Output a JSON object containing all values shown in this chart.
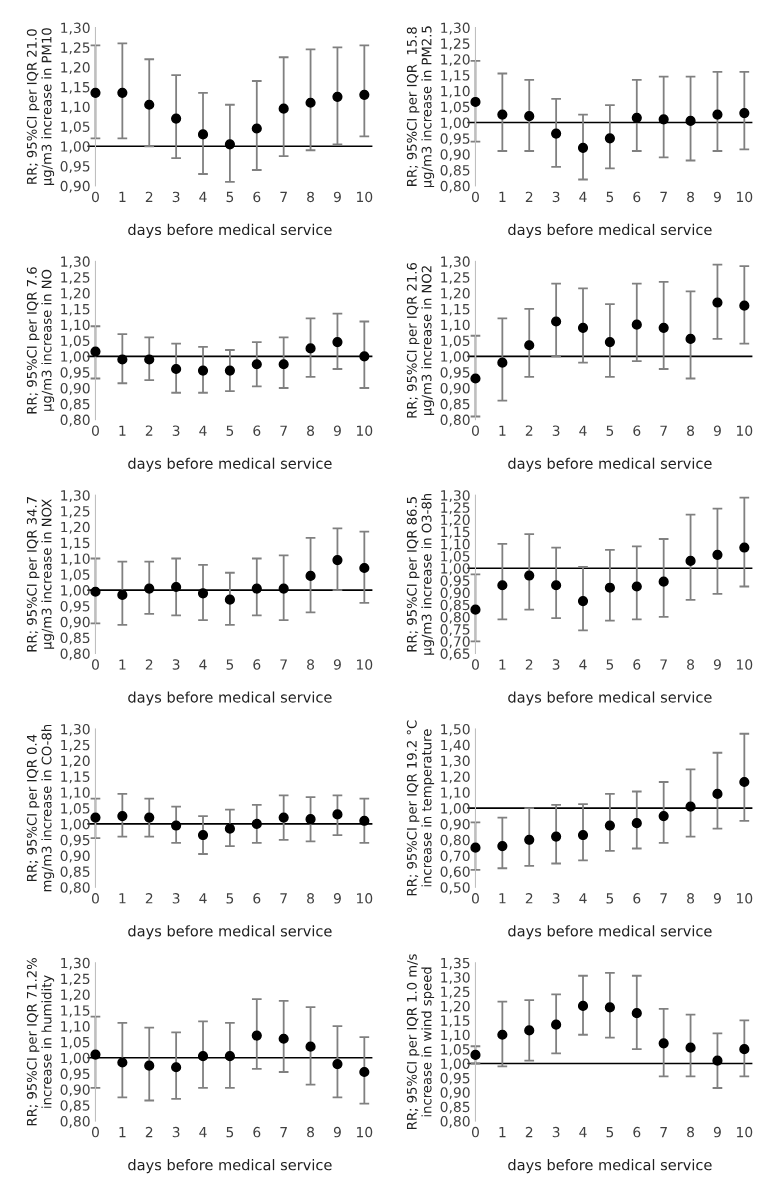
{
  "chart_data": [
    {
      "type": "scatter",
      "ylabel": "RR; 95%CI per IQR 21.0 µg/m3 increase in PM10",
      "xlabel": "days before medical service",
      "categories": [
        "0",
        "1",
        "2",
        "3",
        "4",
        "5",
        "6",
        "7",
        "8",
        "9",
        "10"
      ],
      "color": "#000000",
      "marker": "circle",
      "grid": false,
      "ref_lines": [
        {
          "axis": "y",
          "value": 1.0,
          "color": "#000000"
        }
      ],
      "values": [
        1.135,
        1.135,
        1.105,
        1.07,
        1.03,
        1.005,
        1.045,
        1.095,
        1.11,
        1.125,
        1.13
      ],
      "errors": [
        [
          1.02,
          1.255
        ],
        [
          1.02,
          1.26
        ],
        [
          1.0,
          1.22
        ],
        [
          0.97,
          1.18
        ],
        [
          0.93,
          1.135
        ],
        [
          0.91,
          1.105
        ],
        [
          0.94,
          1.165
        ],
        [
          0.975,
          1.225
        ],
        [
          0.99,
          1.245
        ],
        [
          1.005,
          1.25
        ],
        [
          1.025,
          1.255
        ]
      ],
      "ylim": [
        0.9,
        1.3
      ],
      "yticks": [
        {
          "value": 0.9,
          "label": "0,90"
        },
        {
          "value": 0.95,
          "label": "0,95"
        },
        {
          "value": 1.0,
          "label": "1,00"
        },
        {
          "value": 1.05,
          "label": "1,05"
        },
        {
          "value": 1.1,
          "label": "1,10"
        },
        {
          "value": 1.15,
          "label": "1,15"
        },
        {
          "value": 1.2,
          "label": "1,20"
        },
        {
          "value": 1.25,
          "label": "1,25"
        },
        {
          "value": 1.3,
          "label": "1,30"
        }
      ]
    },
    {
      "type": "scatter",
      "ylabel": "RR; 95%CI per IQR  15.8 µg/m3 increase in PM2.5",
      "xlabel": "days before medical service",
      "categories": [
        "0",
        "1",
        "2",
        "3",
        "4",
        "5",
        "6",
        "7",
        "8",
        "9",
        "10"
      ],
      "color": "#000000",
      "marker": "circle",
      "grid": false,
      "ref_lines": [
        {
          "axis": "y",
          "value": 1.0,
          "color": "#000000"
        }
      ],
      "values": [
        1.065,
        1.025,
        1.02,
        0.965,
        0.92,
        0.95,
        1.015,
        1.01,
        1.005,
        1.025,
        1.03
      ],
      "errors": [
        [
          0.94,
          1.195
        ],
        [
          0.91,
          1.155
        ],
        [
          0.91,
          1.135
        ],
        [
          0.86,
          1.075
        ],
        [
          0.82,
          1.025
        ],
        [
          0.855,
          1.055
        ],
        [
          0.91,
          1.135
        ],
        [
          0.89,
          1.145
        ],
        [
          0.88,
          1.145
        ],
        [
          0.91,
          1.16
        ],
        [
          0.915,
          1.16
        ]
      ],
      "ylim": [
        0.8,
        1.3
      ],
      "yticks": [
        {
          "value": 0.8,
          "label": "0,80"
        },
        {
          "value": 0.85,
          "label": "0,85"
        },
        {
          "value": 0.9,
          "label": "0,90"
        },
        {
          "value": 0.95,
          "label": "0,95"
        },
        {
          "value": 1.0,
          "label": "1,00"
        },
        {
          "value": 1.05,
          "label": "1,05"
        },
        {
          "value": 1.1,
          "label": "1,10"
        },
        {
          "value": 1.15,
          "label": "1,15"
        },
        {
          "value": 1.2,
          "label": "1,20"
        },
        {
          "value": 1.25,
          "label": "1,25"
        },
        {
          "value": 1.3,
          "label": "1,30"
        }
      ]
    },
    {
      "type": "scatter",
      "ylabel": "RR; 95%CI per IQR 7.6 µg/m3 increase in NO",
      "xlabel": "days before medical service",
      "categories": [
        "0",
        "1",
        "2",
        "3",
        "4",
        "5",
        "6",
        "7",
        "8",
        "9",
        "10"
      ],
      "color": "#000000",
      "marker": "circle",
      "grid": false,
      "ref_lines": [
        {
          "axis": "y",
          "value": 1.0,
          "color": "#000000"
        }
      ],
      "values": [
        1.015,
        0.99,
        0.99,
        0.96,
        0.955,
        0.955,
        0.975,
        0.975,
        1.025,
        1.045,
        1.0
      ],
      "errors": [
        [
          0.93,
          1.095
        ],
        [
          0.915,
          1.07
        ],
        [
          0.925,
          1.06
        ],
        [
          0.885,
          1.04
        ],
        [
          0.885,
          1.03
        ],
        [
          0.89,
          1.02
        ],
        [
          0.905,
          1.045
        ],
        [
          0.9,
          1.06
        ],
        [
          0.935,
          1.12
        ],
        [
          0.96,
          1.135
        ],
        [
          0.9,
          1.11
        ]
      ],
      "ylim": [
        0.8,
        1.3
      ],
      "yticks": [
        {
          "value": 0.8,
          "label": "0,80"
        },
        {
          "value": 0.85,
          "label": "0,85"
        },
        {
          "value": 0.9,
          "label": "0,90"
        },
        {
          "value": 0.95,
          "label": "0,95"
        },
        {
          "value": 1.0,
          "label": "1,00"
        },
        {
          "value": 1.05,
          "label": "1,05"
        },
        {
          "value": 1.1,
          "label": "1,10"
        },
        {
          "value": 1.15,
          "label": "1,15"
        },
        {
          "value": 1.2,
          "label": "1,20"
        },
        {
          "value": 1.25,
          "label": "1,25"
        },
        {
          "value": 1.3,
          "label": "1,30"
        }
      ]
    },
    {
      "type": "scatter",
      "ylabel": "RR; 95%CI per IQR 21.6 µg/m3 increase in NO2",
      "xlabel": "days before medical service",
      "categories": [
        "0",
        "1",
        "2",
        "3",
        "4",
        "5",
        "6",
        "7",
        "8",
        "9",
        "10"
      ],
      "color": "#000000",
      "marker": "circle",
      "grid": false,
      "ref_lines": [
        {
          "axis": "y",
          "value": 1.0,
          "color": "#000000"
        }
      ],
      "values": [
        0.93,
        0.98,
        1.035,
        1.11,
        1.09,
        1.045,
        1.1,
        1.09,
        1.055,
        1.17,
        1.16
      ],
      "errors": [
        [
          0.81,
          1.065
        ],
        [
          0.86,
          1.12
        ],
        [
          0.935,
          1.15
        ],
        [
          1.0,
          1.23
        ],
        [
          0.98,
          1.215
        ],
        [
          0.935,
          1.165
        ],
        [
          0.985,
          1.23
        ],
        [
          0.96,
          1.235
        ],
        [
          0.93,
          1.205
        ],
        [
          1.055,
          1.29
        ],
        [
          1.04,
          1.285
        ]
      ],
      "ylim": [
        0.8,
        1.3
      ],
      "yticks": [
        {
          "value": 0.8,
          "label": "0,80"
        },
        {
          "value": 0.85,
          "label": "0,85"
        },
        {
          "value": 0.9,
          "label": "0,90"
        },
        {
          "value": 0.95,
          "label": "0,95"
        },
        {
          "value": 1.0,
          "label": "1,00"
        },
        {
          "value": 1.05,
          "label": "1,05"
        },
        {
          "value": 1.1,
          "label": "1,10"
        },
        {
          "value": 1.15,
          "label": "1,15"
        },
        {
          "value": 1.2,
          "label": "1,20"
        },
        {
          "value": 1.25,
          "label": "1,25"
        },
        {
          "value": 1.3,
          "label": "1,30"
        }
      ]
    },
    {
      "type": "scatter",
      "ylabel": "RR; 95%CI per IQR 34.7 µg/m3 increase in NOX",
      "xlabel": "days before medical service",
      "categories": [
        "0",
        "1",
        "2",
        "3",
        "4",
        "5",
        "6",
        "7",
        "8",
        "9",
        "10"
      ],
      "color": "#000000",
      "marker": "circle",
      "grid": false,
      "ref_lines": [
        {
          "axis": "y",
          "value": 1.0,
          "color": "#000000"
        }
      ],
      "values": [
        0.995,
        0.985,
        1.005,
        1.01,
        0.99,
        0.97,
        1.005,
        1.005,
        1.045,
        1.095,
        1.07
      ],
      "errors": [
        [
          0.895,
          1.1
        ],
        [
          0.89,
          1.09
        ],
        [
          0.925,
          1.09
        ],
        [
          0.92,
          1.1
        ],
        [
          0.905,
          1.08
        ],
        [
          0.89,
          1.055
        ],
        [
          0.92,
          1.1
        ],
        [
          0.905,
          1.11
        ],
        [
          0.93,
          1.165
        ],
        [
          1.0,
          1.195
        ],
        [
          0.96,
          1.185
        ]
      ],
      "ylim": [
        0.8,
        1.3
      ],
      "yticks": [
        {
          "value": 0.8,
          "label": "0,80"
        },
        {
          "value": 0.85,
          "label": "0,85"
        },
        {
          "value": 0.9,
          "label": "0,90"
        },
        {
          "value": 0.95,
          "label": "0,95"
        },
        {
          "value": 1.0,
          "label": "1,00"
        },
        {
          "value": 1.05,
          "label": "1,05"
        },
        {
          "value": 1.1,
          "label": "1,10"
        },
        {
          "value": 1.15,
          "label": "1,15"
        },
        {
          "value": 1.2,
          "label": "1,20"
        },
        {
          "value": 1.25,
          "label": "1,25"
        },
        {
          "value": 1.3,
          "label": "1,30"
        }
      ]
    },
    {
      "type": "scatter",
      "ylabel": "RR; 95%CI per IQR 86.5 µg/m3 increase in O3-8h",
      "xlabel": "days before medical service",
      "categories": [
        "0",
        "1",
        "2",
        "3",
        "4",
        "5",
        "6",
        "7",
        "8",
        "9",
        "10"
      ],
      "color": "#000000",
      "marker": "circle",
      "grid": false,
      "ref_lines": [
        {
          "axis": "y",
          "value": 1.0,
          "color": "#000000"
        }
      ],
      "values": [
        0.83,
        0.93,
        0.97,
        0.93,
        0.865,
        0.92,
        0.925,
        0.945,
        1.03,
        1.055,
        1.085
      ],
      "errors": [
        [
          0.7,
          0.975
        ],
        [
          0.79,
          1.1
        ],
        [
          0.83,
          1.14
        ],
        [
          0.795,
          1.085
        ],
        [
          0.745,
          1.005
        ],
        [
          0.785,
          1.075
        ],
        [
          0.79,
          1.09
        ],
        [
          0.8,
          1.12
        ],
        [
          0.87,
          1.22
        ],
        [
          0.895,
          1.245
        ],
        [
          0.925,
          1.29
        ]
      ],
      "ylim": [
        0.65,
        1.3
      ],
      "yticks": [
        {
          "value": 0.65,
          "label": "0,65"
        },
        {
          "value": 0.7,
          "label": "0,70"
        },
        {
          "value": 0.75,
          "label": "0,75"
        },
        {
          "value": 0.8,
          "label": "0,80"
        },
        {
          "value": 0.85,
          "label": "0,85"
        },
        {
          "value": 0.9,
          "label": "0,90"
        },
        {
          "value": 0.95,
          "label": "0,95"
        },
        {
          "value": 1.0,
          "label": "1,00"
        },
        {
          "value": 1.05,
          "label": "1,05"
        },
        {
          "value": 1.1,
          "label": "1,10"
        },
        {
          "value": 1.15,
          "label": "1,15"
        },
        {
          "value": 1.2,
          "label": "1,20"
        },
        {
          "value": 1.25,
          "label": "1,25"
        },
        {
          "value": 1.3,
          "label": "1,30"
        }
      ]
    },
    {
      "type": "scatter",
      "ylabel": "RR; 95%CI per IQR 0.4 mg/m3 increase in CO-8h",
      "xlabel": "days before medical service",
      "categories": [
        "0",
        "1",
        "2",
        "3",
        "4",
        "5",
        "6",
        "7",
        "8",
        "9",
        "10"
      ],
      "color": "#000000",
      "marker": "circle",
      "grid": false,
      "ref_lines": [
        {
          "axis": "y",
          "value": 1.0,
          "color": "#000000"
        }
      ],
      "values": [
        1.02,
        1.025,
        1.02,
        0.995,
        0.965,
        0.985,
        1.0,
        1.02,
        1.015,
        1.03,
        1.01
      ],
      "errors": [
        [
          0.955,
          1.08
        ],
        [
          0.96,
          1.095
        ],
        [
          0.96,
          1.08
        ],
        [
          0.94,
          1.055
        ],
        [
          0.905,
          1.025
        ],
        [
          0.93,
          1.045
        ],
        [
          0.94,
          1.06
        ],
        [
          0.95,
          1.09
        ],
        [
          0.945,
          1.085
        ],
        [
          0.965,
          1.09
        ],
        [
          0.94,
          1.08
        ]
      ],
      "ylim": [
        0.8,
        1.3
      ],
      "yticks": [
        {
          "value": 0.8,
          "label": "0,80"
        },
        {
          "value": 0.85,
          "label": "0,85"
        },
        {
          "value": 0.9,
          "label": "0,90"
        },
        {
          "value": 0.95,
          "label": "0,95"
        },
        {
          "value": 1.0,
          "label": "1,00"
        },
        {
          "value": 1.05,
          "label": "1,05"
        },
        {
          "value": 1.1,
          "label": "1,10"
        },
        {
          "value": 1.15,
          "label": "1,15"
        },
        {
          "value": 1.2,
          "label": "1,20"
        },
        {
          "value": 1.25,
          "label": "1,25"
        },
        {
          "value": 1.3,
          "label": "1,30"
        }
      ]
    },
    {
      "type": "scatter",
      "ylabel": "RR; 95%CI per IQR 19.2 °C increase in temperature",
      "xlabel": "days before medical service",
      "categories": [
        "0",
        "1",
        "2",
        "3",
        "4",
        "5",
        "6",
        "7",
        "8",
        "9",
        "10"
      ],
      "color": "#000000",
      "marker": "circle",
      "grid": false,
      "ref_lines": [
        {
          "axis": "y",
          "value": 1.0,
          "color": "#000000"
        }
      ],
      "values": [
        0.75,
        0.76,
        0.8,
        0.82,
        0.83,
        0.89,
        0.905,
        0.95,
        1.01,
        1.09,
        1.165
      ],
      "errors": [
        [
          0.61,
          0.91
        ],
        [
          0.62,
          0.94
        ],
        [
          0.635,
          1.0
        ],
        [
          0.65,
          1.02
        ],
        [
          0.67,
          1.025
        ],
        [
          0.73,
          1.09
        ],
        [
          0.745,
          1.105
        ],
        [
          0.78,
          1.165
        ],
        [
          0.82,
          1.245
        ],
        [
          0.87,
          1.35
        ],
        [
          0.92,
          1.47
        ]
      ],
      "ylim": [
        0.5,
        1.5
      ],
      "yticks": [
        {
          "value": 0.5,
          "label": "0,50"
        },
        {
          "value": 0.6,
          "label": "0,60"
        },
        {
          "value": 0.7,
          "label": "0,70"
        },
        {
          "value": 0.8,
          "label": "0,80"
        },
        {
          "value": 0.9,
          "label": "0,90"
        },
        {
          "value": 1.0,
          "label": "1,00"
        },
        {
          "value": 1.1,
          "label": "1,10"
        },
        {
          "value": 1.2,
          "label": "1,20"
        },
        {
          "value": 1.3,
          "label": "1,30"
        },
        {
          "value": 1.4,
          "label": "1,40"
        },
        {
          "value": 1.5,
          "label": "1,50"
        }
      ]
    },
    {
      "type": "scatter",
      "ylabel": "RR; 95%CI per IQR 71.2% increase in humidity",
      "xlabel": "days before medical service",
      "categories": [
        "0",
        "1",
        "2",
        "3",
        "4",
        "5",
        "6",
        "7",
        "8",
        "9",
        "10"
      ],
      "color": "#000000",
      "marker": "circle",
      "grid": false,
      "ref_lines": [
        {
          "axis": "y",
          "value": 1.0,
          "color": "#000000"
        }
      ],
      "values": [
        1.01,
        0.985,
        0.975,
        0.97,
        1.005,
        1.005,
        1.07,
        1.06,
        1.035,
        0.98,
        0.955
      ],
      "errors": [
        [
          0.905,
          1.13
        ],
        [
          0.875,
          1.11
        ],
        [
          0.865,
          1.095
        ],
        [
          0.87,
          1.08
        ],
        [
          0.905,
          1.115
        ],
        [
          0.905,
          1.11
        ],
        [
          0.965,
          1.185
        ],
        [
          0.955,
          1.18
        ],
        [
          0.915,
          1.16
        ],
        [
          0.875,
          1.1
        ],
        [
          0.855,
          1.065
        ]
      ],
      "ylim": [
        0.8,
        1.3
      ],
      "yticks": [
        {
          "value": 0.8,
          "label": "0,80"
        },
        {
          "value": 0.85,
          "label": "0,85"
        },
        {
          "value": 0.9,
          "label": "0,90"
        },
        {
          "value": 0.95,
          "label": "0,95"
        },
        {
          "value": 1.0,
          "label": "1,00"
        },
        {
          "value": 1.05,
          "label": "1,05"
        },
        {
          "value": 1.1,
          "label": "1,10"
        },
        {
          "value": 1.15,
          "label": "1,15"
        },
        {
          "value": 1.2,
          "label": "1,20"
        },
        {
          "value": 1.25,
          "label": "1,25"
        },
        {
          "value": 1.3,
          "label": "1,30"
        }
      ]
    },
    {
      "type": "scatter",
      "ylabel": "RR; 95%CI per IQR 1.0 m/s increase in wind speed",
      "xlabel": "days before medical service",
      "categories": [
        "0",
        "1",
        "2",
        "3",
        "4",
        "5",
        "6",
        "7",
        "8",
        "9",
        "10"
      ],
      "color": "#000000",
      "marker": "circle",
      "grid": false,
      "ref_lines": [
        {
          "axis": "y",
          "value": 1.0,
          "color": "#000000"
        }
      ],
      "values": [
        1.03,
        1.1,
        1.115,
        1.135,
        1.2,
        1.195,
        1.175,
        1.07,
        1.055,
        1.01,
        1.05
      ],
      "errors": [
        [
          1.0,
          1.06
        ],
        [
          0.99,
          1.215
        ],
        [
          1.01,
          1.22
        ],
        [
          1.035,
          1.24
        ],
        [
          1.1,
          1.305
        ],
        [
          1.09,
          1.315
        ],
        [
          1.05,
          1.305
        ],
        [
          0.955,
          1.19
        ],
        [
          0.955,
          1.17
        ],
        [
          0.915,
          1.105
        ],
        [
          0.955,
          1.15
        ]
      ],
      "ylim": [
        0.8,
        1.35
      ],
      "yticks": [
        {
          "value": 0.8,
          "label": "0,80"
        },
        {
          "value": 0.85,
          "label": "0,85"
        },
        {
          "value": 0.9,
          "label": "0,90"
        },
        {
          "value": 0.95,
          "label": "0,95"
        },
        {
          "value": 1.0,
          "label": "1,00"
        },
        {
          "value": 1.05,
          "label": "1,05"
        },
        {
          "value": 1.1,
          "label": "1,10"
        },
        {
          "value": 1.15,
          "label": "1,15"
        },
        {
          "value": 1.2,
          "label": "1,20"
        },
        {
          "value": 1.25,
          "label": "1,25"
        },
        {
          "value": 1.3,
          "label": "1,30"
        },
        {
          "value": 1.35,
          "label": "1,35"
        }
      ]
    }
  ]
}
